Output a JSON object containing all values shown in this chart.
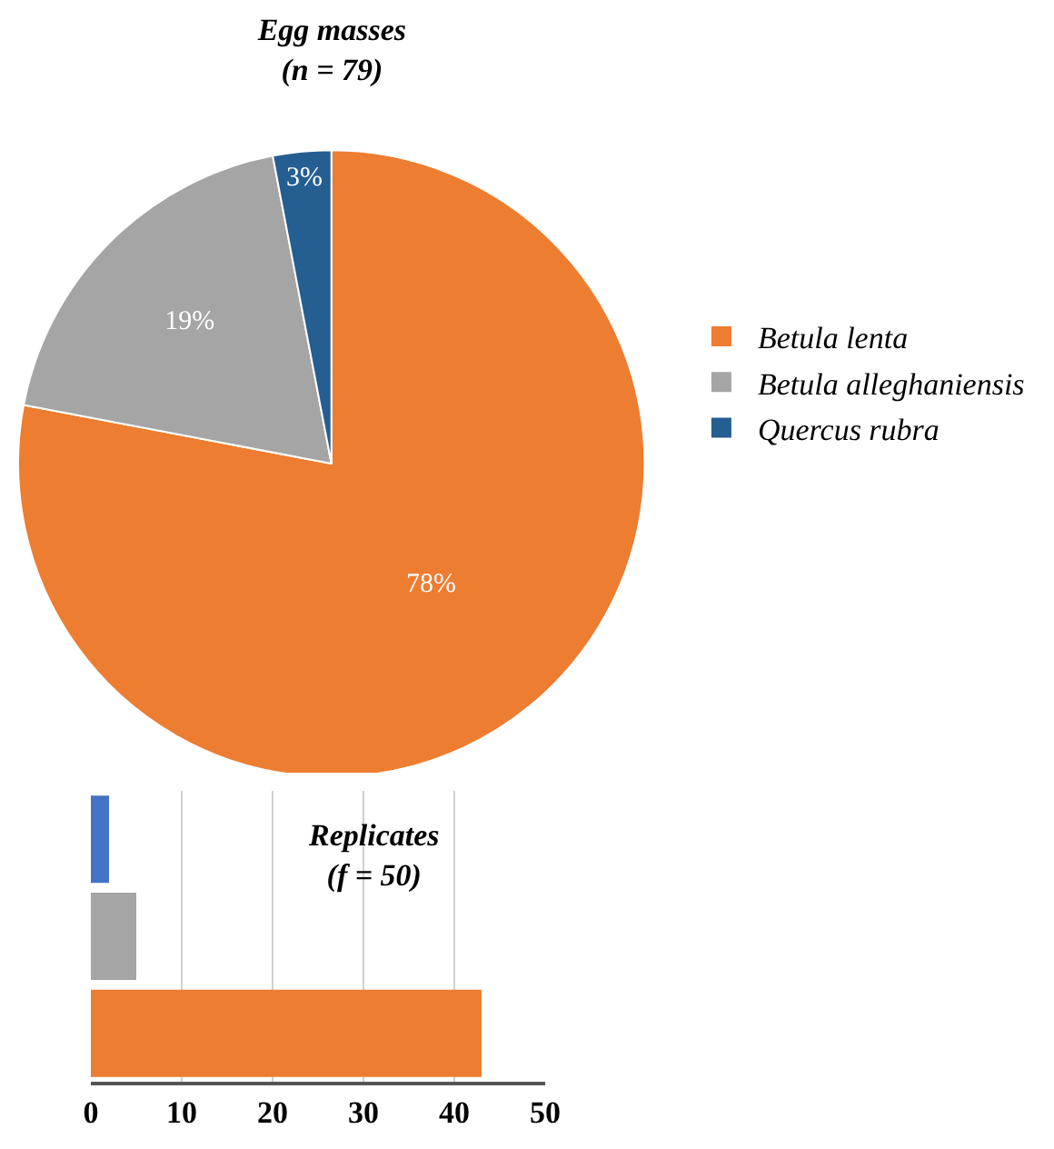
{
  "chart_data": [
    {
      "type": "pie",
      "title": "Egg masses\n(n = 79)",
      "categories": [
        "Betula lenta",
        "Betula alleghaniensis",
        "Quercus rubra"
      ],
      "values": [
        78,
        19,
        3
      ],
      "colors": [
        "#ed7d31",
        "#a5a5a5",
        "#255e91"
      ],
      "value_labels": [
        "78%",
        "19%",
        "3%"
      ],
      "legend": "right"
    },
    {
      "type": "bar",
      "title": "Replicates\n(f = 50)",
      "orientation": "horizontal",
      "categories": [
        null,
        null,
        null
      ],
      "values": [
        2,
        5,
        43
      ],
      "colors": [
        "#4472c4",
        "#a5a5a5",
        "#ed7d31"
      ],
      "xlim": [
        0,
        50
      ],
      "xticks": [
        0,
        10,
        20,
        30,
        40,
        50
      ],
      "grid": "x",
      "tick_labels": "x"
    }
  ]
}
